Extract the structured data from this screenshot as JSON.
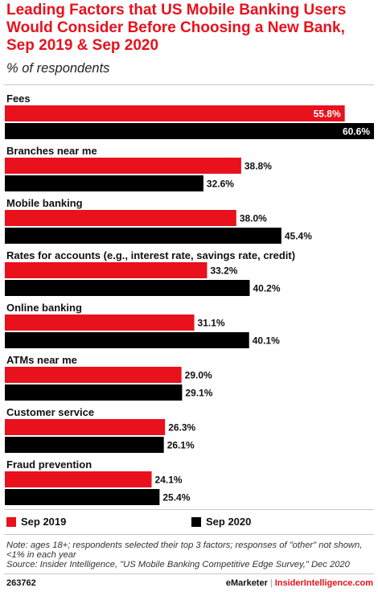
{
  "colors": {
    "sep_2019": "#e8111c",
    "sep_2020": "#000000"
  },
  "chart_data": {
    "type": "bar",
    "orientation": "horizontal",
    "title": "Leading Factors that US Mobile Banking Users Would Consider Before Choosing a New Bank, Sep 2019 & Sep 2020",
    "subtitle": "% of respondents",
    "categories": [
      "Fees",
      "Branches near me",
      "Mobile banking",
      "Rates for accounts (e.g., interest rate, savings rate, credit)",
      "Online banking",
      "ATMs near me",
      "Customer service",
      "Fraud prevention"
    ],
    "series": [
      {
        "name": "Sep 2019",
        "values": [
          55.8,
          38.8,
          38.0,
          33.2,
          31.1,
          29.0,
          26.3,
          24.1
        ],
        "labels": [
          "55.8%",
          "38.8%",
          "38.0%",
          "33.2%",
          "31.1%",
          "29.0%",
          "26.3%",
          "24.1%"
        ]
      },
      {
        "name": "Sep 2020",
        "values": [
          60.6,
          32.6,
          45.4,
          40.2,
          40.1,
          29.1,
          26.1,
          25.4
        ],
        "labels": [
          "60.6%",
          "32.6%",
          "45.4%",
          "40.2%",
          "40.1%",
          "29.1%",
          "26.1%",
          "25.4%"
        ]
      }
    ],
    "xlim": [
      0,
      60.6
    ],
    "grid": false,
    "legend_placement": "bottom-left"
  },
  "legend": {
    "items": [
      "Sep 2019",
      "Sep 2020"
    ]
  },
  "footnote": {
    "note": "Note: ages 18+; respondents selected their top 3 factors; responses of \"other\" not shown, <1% in each year",
    "source": "Source: Insider Intelligence, \"US Mobile Banking Competitive Edge Survey,\" Dec 2020"
  },
  "footer": {
    "chart_id": "263762",
    "brand": "eMarketer",
    "separator": "|",
    "site": "InsiderIntelligence.com"
  }
}
